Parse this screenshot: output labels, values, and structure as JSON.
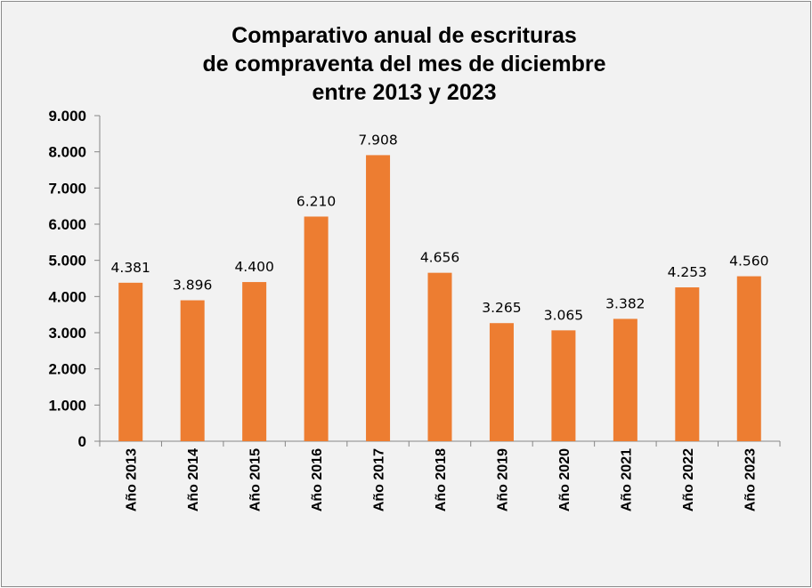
{
  "chart_data": {
    "type": "bar",
    "title_lines": [
      "Comparativo anual de escrituras",
      "de compraventa del mes de diciembre",
      "entre 2013 y 2023"
    ],
    "categories": [
      "Año 2013",
      "Año 2014",
      "Año 2015",
      "Año 2016",
      "Año 2017",
      "Año 2018",
      "Año 2019",
      "Año 2020",
      "Año 2021",
      "Año 2022",
      "Año 2023"
    ],
    "values": [
      4381,
      3896,
      4400,
      6210,
      7908,
      4656,
      3265,
      3065,
      3382,
      4253,
      4560
    ],
    "value_labels": [
      "4.381",
      "3.896",
      "4.400",
      "6.210",
      "7.908",
      "4.656",
      "3.265",
      "3.065",
      "3.382",
      "4.253",
      "4.560"
    ],
    "ylim": [
      0,
      9000
    ],
    "yticks": [
      0,
      1000,
      2000,
      3000,
      4000,
      5000,
      6000,
      7000,
      8000,
      9000
    ],
    "ytick_labels": [
      "0",
      "1.000",
      "2.000",
      "3.000",
      "4.000",
      "5.000",
      "6.000",
      "7.000",
      "8.000",
      "9.000"
    ],
    "xlabel": "",
    "ylabel": "",
    "grid": false,
    "legend": "none",
    "bar_color": "#ed7d31",
    "background_color": "#f2f2f2"
  }
}
